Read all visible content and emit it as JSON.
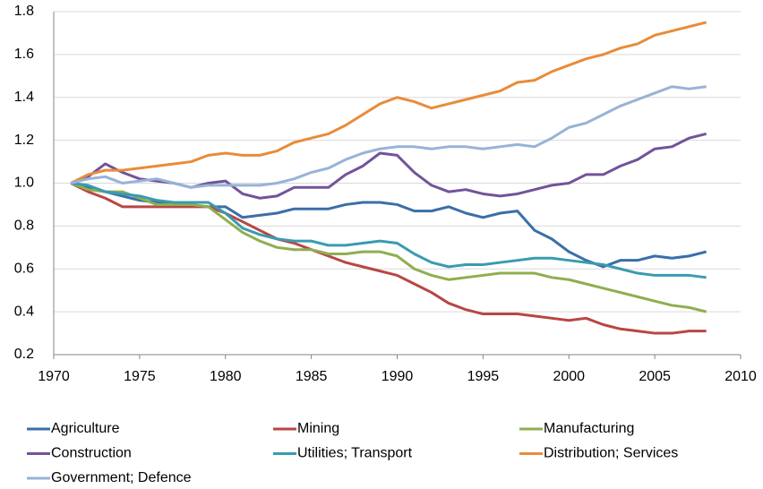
{
  "chart_data": {
    "type": "line",
    "x": [
      1971,
      1972,
      1973,
      1974,
      1975,
      1976,
      1977,
      1978,
      1979,
      1980,
      1981,
      1982,
      1983,
      1984,
      1985,
      1986,
      1987,
      1988,
      1989,
      1990,
      1991,
      1992,
      1993,
      1994,
      1995,
      1996,
      1997,
      1998,
      1999,
      2000,
      2001,
      2002,
      2003,
      2004,
      2005,
      2006,
      2007,
      2008
    ],
    "series": [
      {
        "name": "Agriculture",
        "color": "#3b6ea8",
        "values": [
          1.0,
          0.98,
          0.96,
          0.94,
          0.92,
          0.91,
          0.91,
          0.9,
          0.89,
          0.89,
          0.84,
          0.85,
          0.86,
          0.88,
          0.88,
          0.88,
          0.9,
          0.91,
          0.91,
          0.9,
          0.87,
          0.87,
          0.89,
          0.86,
          0.84,
          0.86,
          0.87,
          0.78,
          0.74,
          0.68,
          0.64,
          0.61,
          0.64,
          0.64,
          0.66,
          0.65,
          0.66,
          0.68
        ]
      },
      {
        "name": "Mining",
        "color": "#b94643",
        "values": [
          1.0,
          0.96,
          0.93,
          0.89,
          0.89,
          0.89,
          0.89,
          0.89,
          0.89,
          0.86,
          0.82,
          0.78,
          0.74,
          0.72,
          0.69,
          0.66,
          0.63,
          0.61,
          0.59,
          0.57,
          0.53,
          0.49,
          0.44,
          0.41,
          0.39,
          0.39,
          0.39,
          0.38,
          0.37,
          0.36,
          0.37,
          0.34,
          0.32,
          0.31,
          0.3,
          0.3,
          0.31,
          0.31
        ]
      },
      {
        "name": "Manufacturing",
        "color": "#8fae4e",
        "values": [
          1.0,
          0.97,
          0.96,
          0.96,
          0.93,
          0.9,
          0.9,
          0.9,
          0.89,
          0.83,
          0.77,
          0.73,
          0.7,
          0.69,
          0.69,
          0.67,
          0.67,
          0.68,
          0.68,
          0.66,
          0.6,
          0.57,
          0.55,
          0.56,
          0.57,
          0.58,
          0.58,
          0.58,
          0.56,
          0.55,
          0.53,
          0.51,
          0.49,
          0.47,
          0.45,
          0.43,
          0.42,
          0.4
        ]
      },
      {
        "name": "Construction",
        "color": "#73539a",
        "values": [
          1.0,
          1.03,
          1.09,
          1.05,
          1.02,
          1.01,
          1.0,
          0.98,
          1.0,
          1.01,
          0.95,
          0.93,
          0.94,
          0.98,
          0.98,
          0.98,
          1.04,
          1.08,
          1.14,
          1.13,
          1.05,
          0.99,
          0.96,
          0.97,
          0.95,
          0.94,
          0.95,
          0.97,
          0.99,
          1.0,
          1.04,
          1.04,
          1.08,
          1.11,
          1.16,
          1.17,
          1.21,
          1.23
        ]
      },
      {
        "name": "Utilities; Transport",
        "color": "#3a9bb0",
        "values": [
          1.0,
          0.99,
          0.96,
          0.95,
          0.94,
          0.92,
          0.91,
          0.91,
          0.91,
          0.86,
          0.79,
          0.76,
          0.74,
          0.73,
          0.73,
          0.71,
          0.71,
          0.72,
          0.73,
          0.72,
          0.67,
          0.63,
          0.61,
          0.62,
          0.62,
          0.63,
          0.64,
          0.65,
          0.65,
          0.64,
          0.63,
          0.62,
          0.6,
          0.58,
          0.57,
          0.57,
          0.57,
          0.56
        ]
      },
      {
        "name": "Distribution; Services",
        "color": "#e88c39",
        "values": [
          1.0,
          1.04,
          1.06,
          1.06,
          1.07,
          1.08,
          1.09,
          1.1,
          1.13,
          1.14,
          1.13,
          1.13,
          1.15,
          1.19,
          1.21,
          1.23,
          1.27,
          1.32,
          1.37,
          1.4,
          1.38,
          1.35,
          1.37,
          1.39,
          1.41,
          1.43,
          1.47,
          1.48,
          1.52,
          1.55,
          1.58,
          1.6,
          1.63,
          1.65,
          1.69,
          1.71,
          1.73,
          1.75
        ]
      },
      {
        "name": "Government; Defence",
        "color": "#97b3d8",
        "values": [
          1.0,
          1.02,
          1.03,
          1.0,
          1.01,
          1.02,
          1.0,
          0.98,
          0.99,
          0.99,
          0.99,
          0.99,
          1.0,
          1.02,
          1.05,
          1.07,
          1.11,
          1.14,
          1.16,
          1.17,
          1.17,
          1.16,
          1.17,
          1.17,
          1.16,
          1.17,
          1.18,
          1.17,
          1.21,
          1.26,
          1.28,
          1.32,
          1.36,
          1.39,
          1.42,
          1.45,
          1.44,
          1.45
        ]
      }
    ],
    "xlim": [
      1970,
      2010
    ],
    "xticks": [
      1970,
      1975,
      1980,
      1985,
      1990,
      1995,
      2000,
      2005,
      2010
    ],
    "ylim": [
      0.2,
      1.8
    ],
    "yticks": [
      0.2,
      0.4,
      0.6,
      0.8,
      {
        "value": 1,
        "label": "1.0"
      },
      1.2,
      1.4,
      1.6,
      1.8
    ],
    "grid": true,
    "legend": "bottom"
  }
}
